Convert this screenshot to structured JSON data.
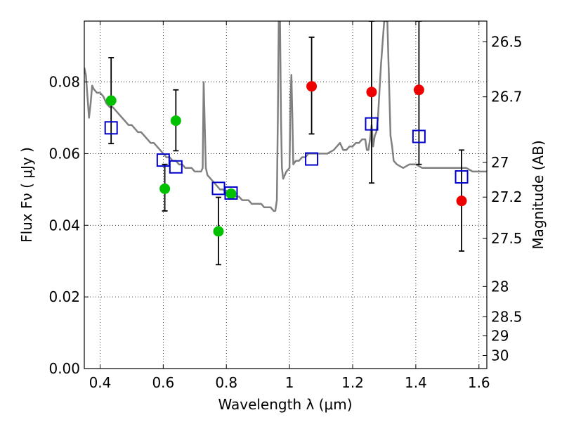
{
  "chart_data": {
    "type": "scatter",
    "title": "",
    "xlabel": "Wavelength  λ (μm)",
    "ylabel": "Flux  Fν  ( μJy )",
    "ylabel_right": "Magnitude (AB)",
    "xlim": [
      0.35,
      1.625
    ],
    "ylim": [
      0.0,
      0.097
    ],
    "grid": true,
    "x_ticks": [
      0.4,
      0.6,
      0.8,
      1.0,
      1.2,
      1.4,
      1.6
    ],
    "x_tick_labels": [
      "0.4",
      "0.6",
      "0.8",
      "1",
      "1.2",
      "1.4",
      "1.6"
    ],
    "y_ticks": [
      0.0,
      0.02,
      0.04,
      0.06,
      0.08
    ],
    "y_tick_labels": [
      "0.00",
      "0.02",
      "0.04",
      "0.06",
      "0.08"
    ],
    "right_ticks": [
      {
        "label": "26.5",
        "mag": 26.5
      },
      {
        "label": "26.7",
        "mag": 26.7
      },
      {
        "label": "27",
        "mag": 27.0
      },
      {
        "label": "27.2",
        "mag": 27.2
      },
      {
        "label": "27.5",
        "mag": 27.5
      },
      {
        "label": "28",
        "mag": 28.0
      },
      {
        "label": "28.5",
        "mag": 28.5
      },
      {
        "label": "29",
        "mag": 29.0
      },
      {
        "label": "30",
        "mag": 30.0
      }
    ],
    "series": [
      {
        "type": "line",
        "color": "#808080",
        "points": [
          [
            0.35,
            0.084
          ],
          [
            0.355,
            0.082
          ],
          [
            0.36,
            0.076
          ],
          [
            0.365,
            0.07
          ],
          [
            0.37,
            0.074
          ],
          [
            0.375,
            0.079
          ],
          [
            0.38,
            0.078
          ],
          [
            0.39,
            0.077
          ],
          [
            0.4,
            0.077
          ],
          [
            0.41,
            0.076
          ],
          [
            0.42,
            0.074
          ],
          [
            0.43,
            0.073
          ],
          [
            0.44,
            0.073
          ],
          [
            0.45,
            0.072
          ],
          [
            0.46,
            0.071
          ],
          [
            0.47,
            0.07
          ],
          [
            0.48,
            0.069
          ],
          [
            0.49,
            0.068
          ],
          [
            0.5,
            0.068
          ],
          [
            0.51,
            0.067
          ],
          [
            0.52,
            0.066
          ],
          [
            0.53,
            0.066
          ],
          [
            0.54,
            0.065
          ],
          [
            0.55,
            0.064
          ],
          [
            0.56,
            0.063
          ],
          [
            0.57,
            0.063
          ],
          [
            0.58,
            0.062
          ],
          [
            0.59,
            0.061
          ],
          [
            0.6,
            0.06
          ],
          [
            0.61,
            0.059
          ],
          [
            0.62,
            0.059
          ],
          [
            0.63,
            0.058
          ],
          [
            0.64,
            0.058
          ],
          [
            0.65,
            0.057
          ],
          [
            0.66,
            0.057
          ],
          [
            0.67,
            0.056
          ],
          [
            0.68,
            0.056
          ],
          [
            0.69,
            0.056
          ],
          [
            0.7,
            0.055
          ],
          [
            0.71,
            0.055
          ],
          [
            0.72,
            0.055
          ],
          [
            0.725,
            0.056
          ],
          [
            0.728,
            0.08
          ],
          [
            0.731,
            0.07
          ],
          [
            0.735,
            0.056
          ],
          [
            0.74,
            0.054
          ],
          [
            0.75,
            0.053
          ],
          [
            0.76,
            0.052
          ],
          [
            0.77,
            0.051
          ],
          [
            0.78,
            0.05
          ],
          [
            0.79,
            0.05
          ],
          [
            0.8,
            0.049
          ],
          [
            0.81,
            0.049
          ],
          [
            0.82,
            0.048
          ],
          [
            0.83,
            0.048
          ],
          [
            0.84,
            0.048
          ],
          [
            0.85,
            0.047
          ],
          [
            0.86,
            0.047
          ],
          [
            0.87,
            0.047
          ],
          [
            0.88,
            0.046
          ],
          [
            0.89,
            0.046
          ],
          [
            0.9,
            0.046
          ],
          [
            0.91,
            0.046
          ],
          [
            0.92,
            0.045
          ],
          [
            0.93,
            0.045
          ],
          [
            0.94,
            0.045
          ],
          [
            0.95,
            0.044
          ],
          [
            0.955,
            0.044
          ],
          [
            0.96,
            0.047
          ],
          [
            0.963,
            0.07
          ],
          [
            0.966,
            0.097
          ],
          [
            0.97,
            0.097
          ],
          [
            0.973,
            0.07
          ],
          [
            0.976,
            0.056
          ],
          [
            0.98,
            0.053
          ],
          [
            0.985,
            0.054
          ],
          [
            0.99,
            0.055
          ],
          [
            1.0,
            0.056
          ],
          [
            1.003,
            0.075
          ],
          [
            1.006,
            0.082
          ],
          [
            1.009,
            0.07
          ],
          [
            1.012,
            0.057
          ],
          [
            1.02,
            0.058
          ],
          [
            1.03,
            0.058
          ],
          [
            1.04,
            0.059
          ],
          [
            1.05,
            0.059
          ],
          [
            1.06,
            0.06
          ],
          [
            1.07,
            0.06
          ],
          [
            1.08,
            0.06
          ],
          [
            1.09,
            0.06
          ],
          [
            1.1,
            0.06
          ],
          [
            1.12,
            0.06
          ],
          [
            1.14,
            0.061
          ],
          [
            1.16,
            0.063
          ],
          [
            1.17,
            0.061
          ],
          [
            1.18,
            0.061
          ],
          [
            1.19,
            0.062
          ],
          [
            1.2,
            0.062
          ],
          [
            1.21,
            0.063
          ],
          [
            1.22,
            0.063
          ],
          [
            1.23,
            0.064
          ],
          [
            1.24,
            0.064
          ],
          [
            1.245,
            0.061
          ],
          [
            1.25,
            0.061
          ],
          [
            1.255,
            0.064
          ],
          [
            1.26,
            0.068
          ],
          [
            1.265,
            0.062
          ],
          [
            1.27,
            0.065
          ],
          [
            1.275,
            0.066
          ],
          [
            1.28,
            0.07
          ],
          [
            1.29,
            0.085
          ],
          [
            1.3,
            0.097
          ],
          [
            1.31,
            0.097
          ],
          [
            1.32,
            0.065
          ],
          [
            1.325,
            0.062
          ],
          [
            1.33,
            0.058
          ],
          [
            1.34,
            0.057
          ],
          [
            1.36,
            0.056
          ],
          [
            1.38,
            0.057
          ],
          [
            1.4,
            0.057
          ],
          [
            1.42,
            0.056
          ],
          [
            1.44,
            0.056
          ],
          [
            1.46,
            0.056
          ],
          [
            1.48,
            0.056
          ],
          [
            1.5,
            0.056
          ],
          [
            1.52,
            0.056
          ],
          [
            1.54,
            0.056
          ],
          [
            1.56,
            0.056
          ],
          [
            1.58,
            0.055
          ],
          [
            1.6,
            0.055
          ],
          [
            1.625,
            0.055
          ]
        ]
      },
      {
        "type": "scatter-circle",
        "color": "#00c000",
        "points": [
          [
            0.435,
            0.0748
          ],
          [
            0.605,
            0.0502
          ],
          [
            0.64,
            0.0692
          ],
          [
            0.775,
            0.0383
          ],
          [
            0.815,
            0.0488
          ]
        ]
      },
      {
        "type": "scatter-circle",
        "color": "#ee0000",
        "points": [
          [
            1.07,
            0.0788
          ],
          [
            1.26,
            0.0772
          ],
          [
            1.41,
            0.0778
          ],
          [
            1.545,
            0.0468
          ]
        ]
      },
      {
        "type": "scatter-square",
        "color": "#0000cc",
        "points": [
          [
            0.435,
            0.0672
          ],
          [
            0.6,
            0.0582
          ],
          [
            0.64,
            0.0563
          ],
          [
            0.775,
            0.0503
          ],
          [
            0.815,
            0.049
          ],
          [
            1.07,
            0.0585
          ],
          [
            1.26,
            0.0683
          ],
          [
            1.41,
            0.0648
          ],
          [
            1.545,
            0.0535
          ]
        ]
      },
      {
        "type": "errorbar",
        "color": "#000000",
        "bars": [
          [
            0.435,
            0.0628,
            0.0868
          ],
          [
            0.605,
            0.044,
            0.057
          ],
          [
            0.64,
            0.0608,
            0.0778
          ],
          [
            0.775,
            0.029,
            0.0478
          ],
          [
            1.07,
            0.0655,
            0.0925
          ],
          [
            1.26,
            0.0518,
            0.097
          ],
          [
            1.41,
            0.057,
            0.097
          ],
          [
            1.545,
            0.0328,
            0.061
          ]
        ]
      }
    ]
  }
}
